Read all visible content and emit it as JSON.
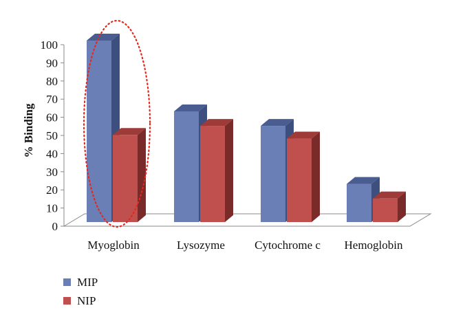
{
  "chart_data": {
    "type": "bar",
    "categories": [
      "Myoglobin",
      "Lysozyme",
      "Cytochrome c",
      "Hemoglobin"
    ],
    "series": [
      {
        "name": "MIP",
        "values": [
          100,
          61,
          53,
          21
        ]
      },
      {
        "name": "NIP",
        "values": [
          48,
          53,
          46,
          13
        ]
      }
    ],
    "ylabel": "% Binding",
    "ylim": [
      0,
      100
    ],
    "yticks": [
      0,
      10,
      20,
      30,
      40,
      50,
      60,
      70,
      80,
      90,
      100
    ],
    "legend_position": "bottom-left",
    "colors": {
      "MIP": "#6a7fb5",
      "MIP_side": "#3c4f7e",
      "MIP_top": "#4a5d90",
      "NIP": "#c0504d",
      "NIP_side": "#7a2b29",
      "NIP_top": "#9e3a37",
      "highlight": "#e8261c"
    },
    "three_d": true,
    "highlight": "Myoglobin"
  }
}
